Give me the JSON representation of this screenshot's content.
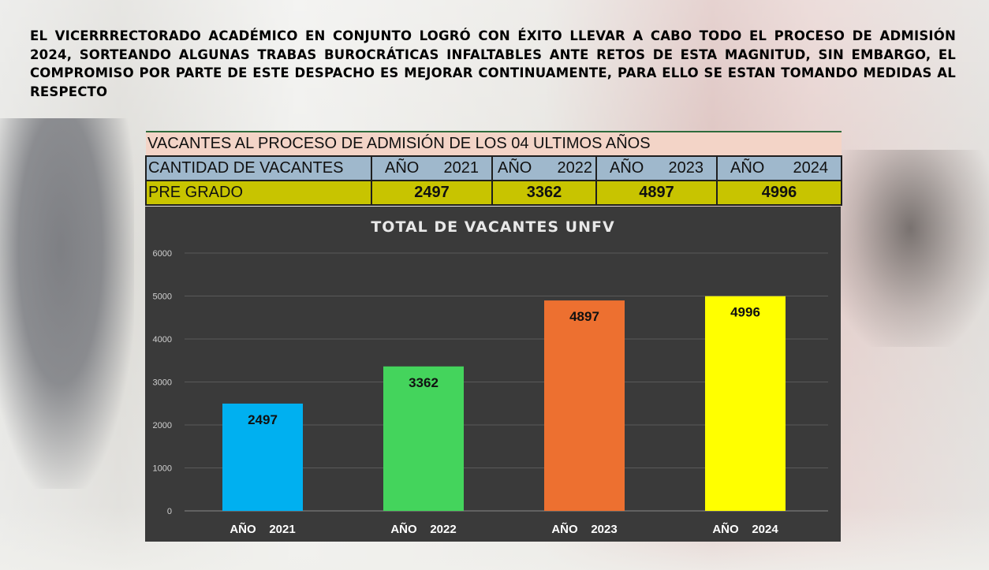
{
  "headline": "EL VICERRRECTORADO ACADÉMICO EN CONJUNTO LOGRÓ CON ÉXITO LLEVAR A CABO TODO EL PROCESO DE ADMISIÓN 2024, SORTEANDO ALGUNAS TRABAS BUROCRÁTICAS INFALTABLES ANTE RETOS DE ESTA MAGNITUD, SIN EMBARGO, EL COMPROMISO POR PARTE DE ESTE DESPACHO ES MEJORAR CONTINUAMENTE, PARA ELLO SE ESTAN TOMANDO MEDIDAS AL RESPECTO",
  "table": {
    "title": "VACANTES AL PROCESO DE ADMISIÓN DE LOS 04 ULTIMOS AÑOS",
    "header_label": "CANTIDAD DE VACANTES",
    "years": [
      {
        "prefix": "AÑO",
        "year": "2021"
      },
      {
        "prefix": "AÑO",
        "year": "2022"
      },
      {
        "prefix": "AÑO",
        "year": "2023"
      },
      {
        "prefix": "AÑO",
        "year": "2024"
      }
    ],
    "row_label": "PRE GRADO",
    "row_values": [
      "2497",
      "3362",
      "4897",
      "4996"
    ]
  },
  "chart_data": {
    "type": "bar",
    "title": "TOTAL DE VACANTES UNFV",
    "xlabel": "",
    "ylabel": "",
    "categories": [
      "AÑO    2021",
      "AÑO    2022",
      "AÑO    2023",
      "AÑO    2024"
    ],
    "values": [
      2497,
      3362,
      4897,
      4996
    ],
    "data_labels": [
      "2497",
      "3362",
      "4897",
      "4996"
    ],
    "ylim": [
      0,
      6000
    ],
    "yticks": [
      0,
      1000,
      2000,
      3000,
      4000,
      5000,
      6000
    ],
    "grid": true,
    "legend": "none",
    "bar_colors": [
      "#00b0f0",
      "#44d45c",
      "#ed7030",
      "#ffff00"
    ]
  },
  "colors": {
    "panel_bg": "#3a3a3a",
    "gridline": "#5a5a5a",
    "table_title_bg": "#f3d4c7",
    "table_header_bg": "#9fb8cc",
    "table_value_bg": "#c8c400"
  }
}
